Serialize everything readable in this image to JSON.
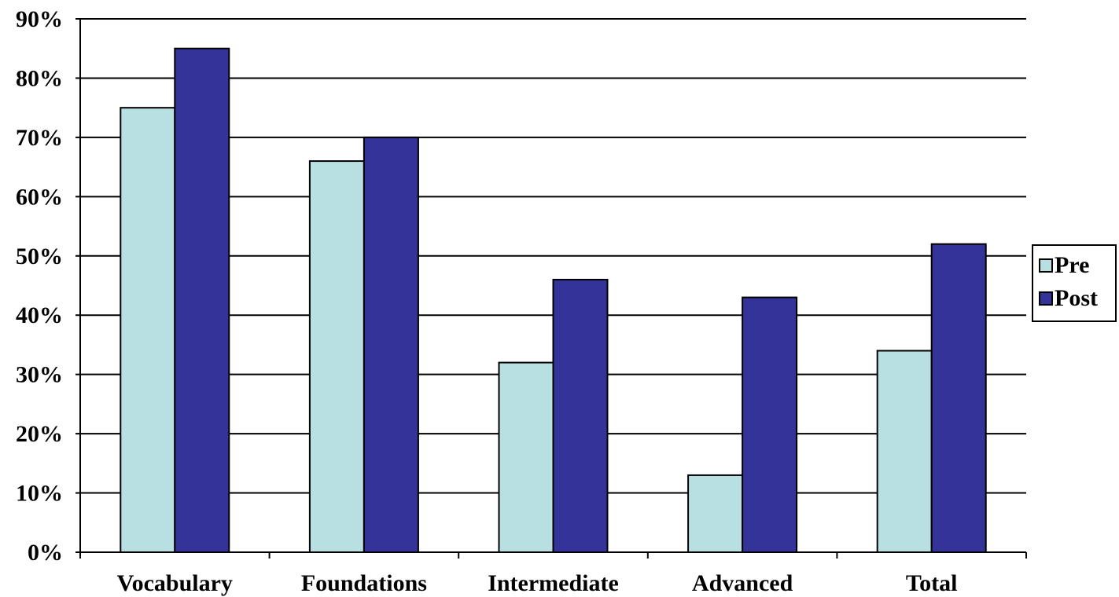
{
  "chart_data": {
    "type": "bar",
    "title": "",
    "xlabel": "",
    "ylabel": "",
    "categories": [
      "Vocabulary",
      "Foundations",
      "Intermediate",
      "Advanced",
      "Total"
    ],
    "series": [
      {
        "name": "Pre",
        "values": [
          75,
          66,
          32,
          13,
          34
        ],
        "color": "#b8e0e2"
      },
      {
        "name": "Post",
        "values": [
          85,
          70,
          46,
          43,
          52
        ],
        "color": "#333399"
      }
    ],
    "ylim": [
      0,
      90
    ],
    "yticks": [
      0,
      10,
      20,
      30,
      40,
      50,
      60,
      70,
      80,
      90
    ],
    "ytick_labels": [
      "0%",
      "10%",
      "20%",
      "30%",
      "40%",
      "50%",
      "60%",
      "70%",
      "80%",
      "90%"
    ],
    "grid": true,
    "legend": "right"
  }
}
